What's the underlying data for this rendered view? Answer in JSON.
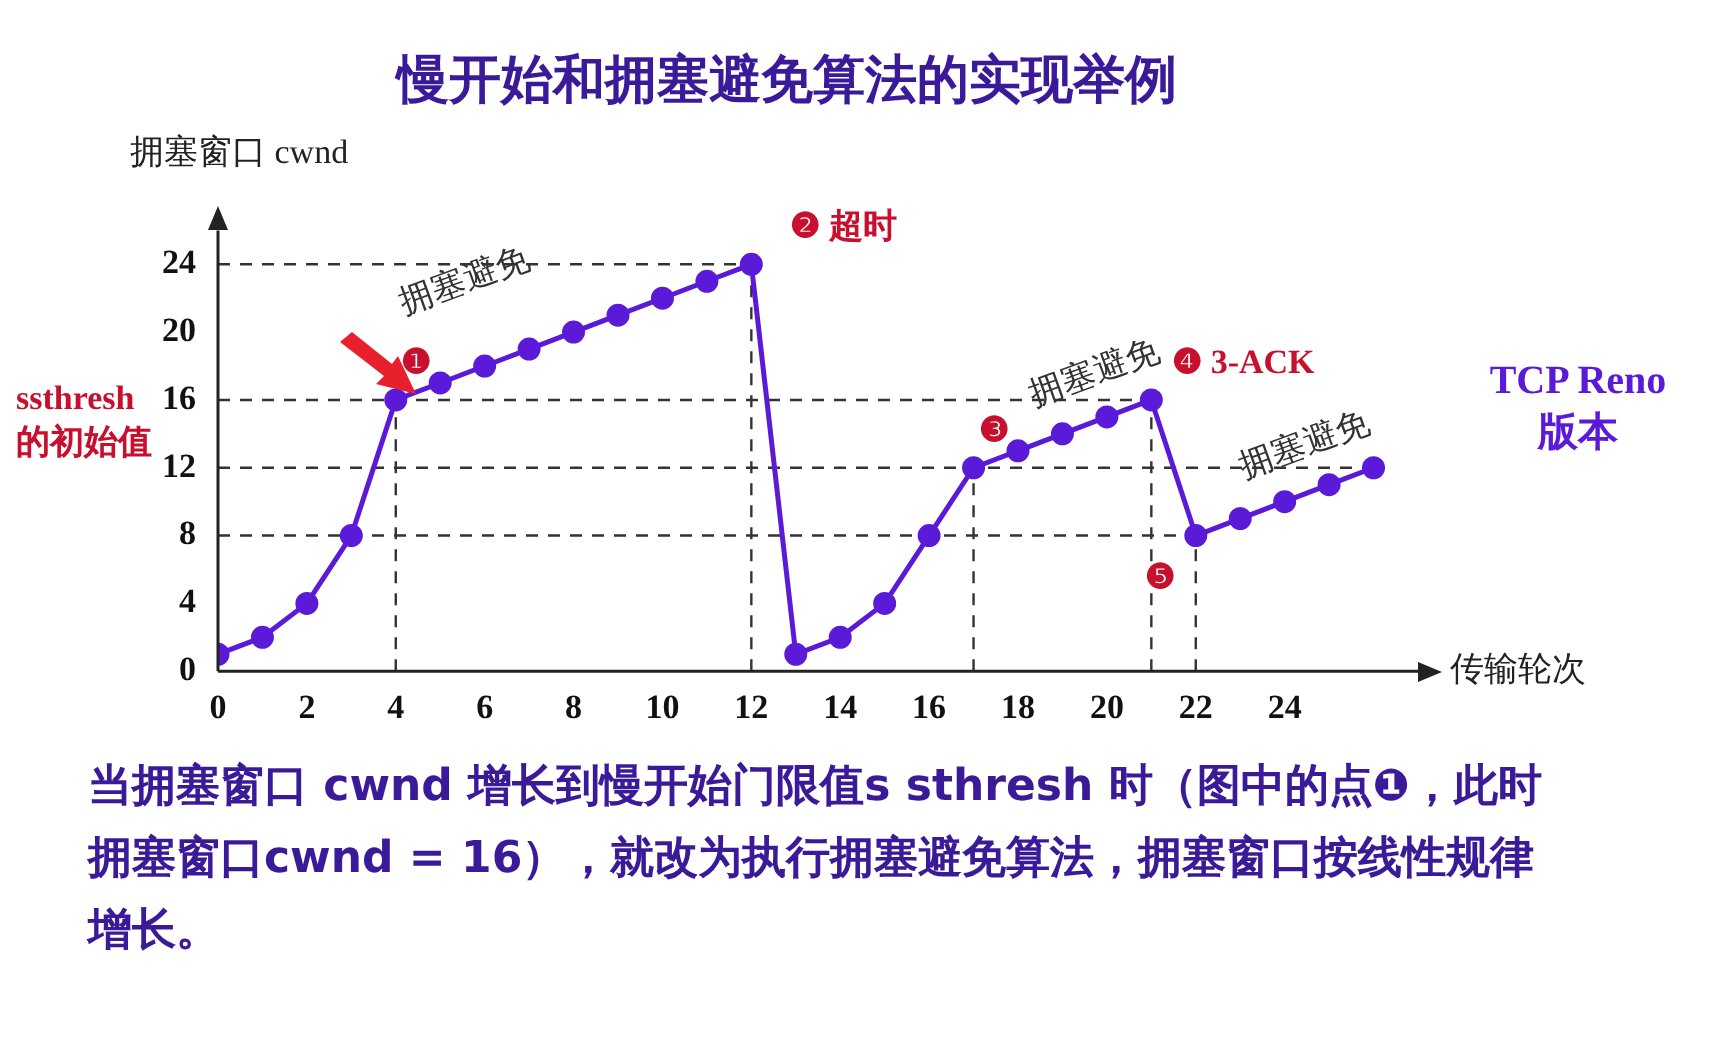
{
  "chart_data": {
    "type": "line",
    "title": "慢开始和拥塞避免算法的实现举例",
    "xlabel": "传输轮次",
    "ylabel": "拥塞窗口 cwnd",
    "x": [
      0,
      1,
      2,
      3,
      4,
      5,
      6,
      7,
      8,
      9,
      10,
      11,
      12,
      13,
      14,
      15,
      16,
      17,
      18,
      19,
      20,
      21,
      22,
      23,
      24,
      25,
      26
    ],
    "series": [
      {
        "color": "#5a1ad8",
        "values": [
          1,
          2,
          4,
          8,
          16,
          17,
          18,
          19,
          20,
          21,
          22,
          23,
          24,
          1,
          2,
          4,
          8,
          12,
          13,
          14,
          15,
          16,
          8,
          9,
          10,
          11,
          12
        ]
      }
    ],
    "xlim": [
      0,
      27
    ],
    "xticks": [
      0,
      2,
      4,
      6,
      8,
      10,
      12,
      14,
      16,
      18,
      20,
      22,
      24
    ],
    "ylim": [
      0,
      26
    ],
    "yticks": [
      0,
      4,
      8,
      12,
      16,
      20,
      24
    ],
    "grid": false,
    "legend": false,
    "marker": "circle",
    "line_style": "solid",
    "ref_lines": [
      {
        "axis": "y",
        "value": 24,
        "line_style": "dashed",
        "color": "#333333"
      },
      {
        "axis": "y",
        "value": 16,
        "line_style": "dashed",
        "color": "#333333"
      },
      {
        "axis": "y",
        "value": 12,
        "line_style": "dashed",
        "color": "#333333"
      },
      {
        "axis": "y",
        "value": 8,
        "line_style": "dashed",
        "color": "#333333"
      },
      {
        "axis": "x",
        "value": 4,
        "line_style": "dashed",
        "color": "#333333"
      },
      {
        "axis": "x",
        "value": 12,
        "line_style": "dashed",
        "color": "#333333"
      },
      {
        "axis": "x",
        "value": 17,
        "line_style": "dashed",
        "color": "#333333"
      },
      {
        "axis": "x",
        "value": 21,
        "line_style": "dashed",
        "color": "#333333"
      },
      {
        "axis": "x",
        "value": 22,
        "line_style": "dashed",
        "color": "#333333"
      }
    ],
    "annotations": [
      {
        "text": "❶",
        "x": 4,
        "y": 16
      },
      {
        "text": "❷ 超时",
        "x": 12,
        "y": 24
      },
      {
        "text": "❸",
        "x": 17,
        "y": 12
      },
      {
        "text": "❹ 3-ACK",
        "x": 21,
        "y": 16
      },
      {
        "text": "❺",
        "x": 22,
        "y": 8
      },
      "拥塞避免",
      "拥塞避免",
      "拥塞避免",
      "ssthresh\n的初始值",
      "TCP Reno\n版本",
      "当拥塞窗口 cwnd 增长到慢开始门限值s sthresh 时（图中的点❶，此时拥塞窗口cwnd = 16），就改为执行拥塞避免算法，拥塞窗口按线性规律增长。"
    ]
  }
}
